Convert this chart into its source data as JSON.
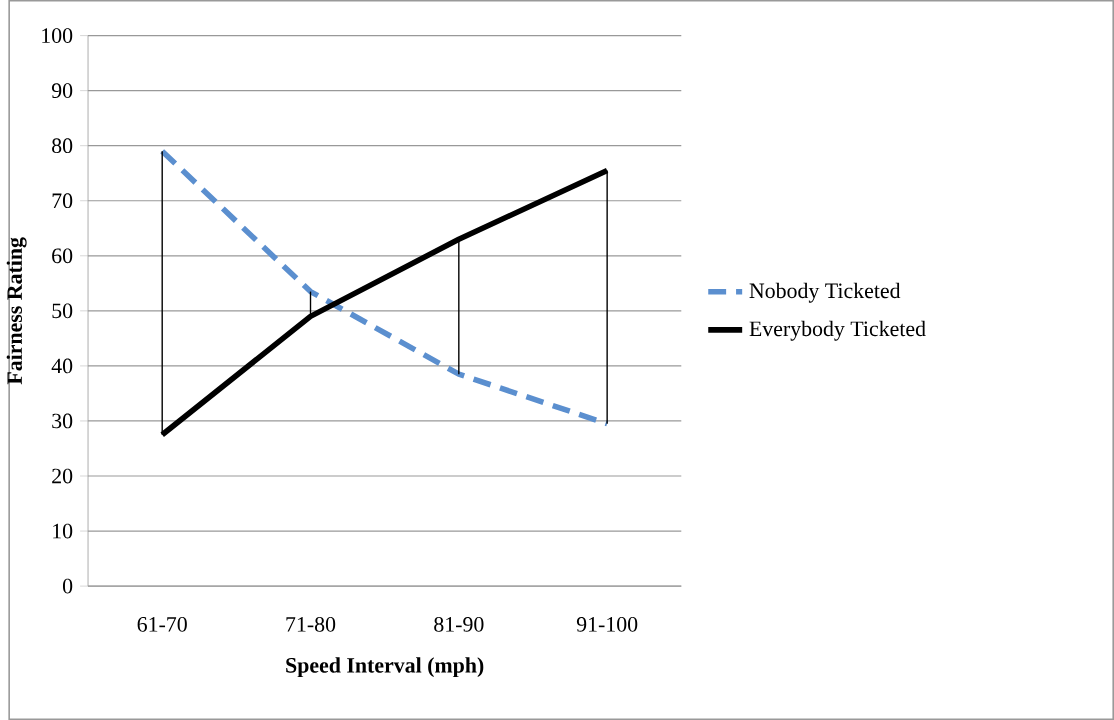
{
  "chart_data": {
    "type": "line",
    "xlabel": "Speed Interval (mph)",
    "ylabel": "Fairness Rating",
    "categories": [
      "61-70",
      "71-80",
      "81-90",
      "91-100"
    ],
    "series": [
      {
        "name": "Nobody Ticketed",
        "color": "#5b8fcf",
        "values": [
          79,
          53.5,
          38.5,
          29.5
        ],
        "line_style": "dashed"
      },
      {
        "name": "Everybody Ticketed",
        "color": "#000000",
        "values": [
          27.5,
          49,
          63,
          75.5
        ],
        "line_style": "solid",
        "errors": [
          [
            27.5,
            79
          ],
          [
            49,
            53.5
          ],
          [
            38.5,
            63
          ],
          [
            29.5,
            75.5
          ]
        ]
      }
    ],
    "ylim": [
      0,
      100
    ],
    "yticks": [
      0,
      10,
      20,
      30,
      40,
      50,
      60,
      70,
      80,
      90,
      100
    ],
    "grid": "y",
    "legend": "right",
    "marker": "none"
  }
}
